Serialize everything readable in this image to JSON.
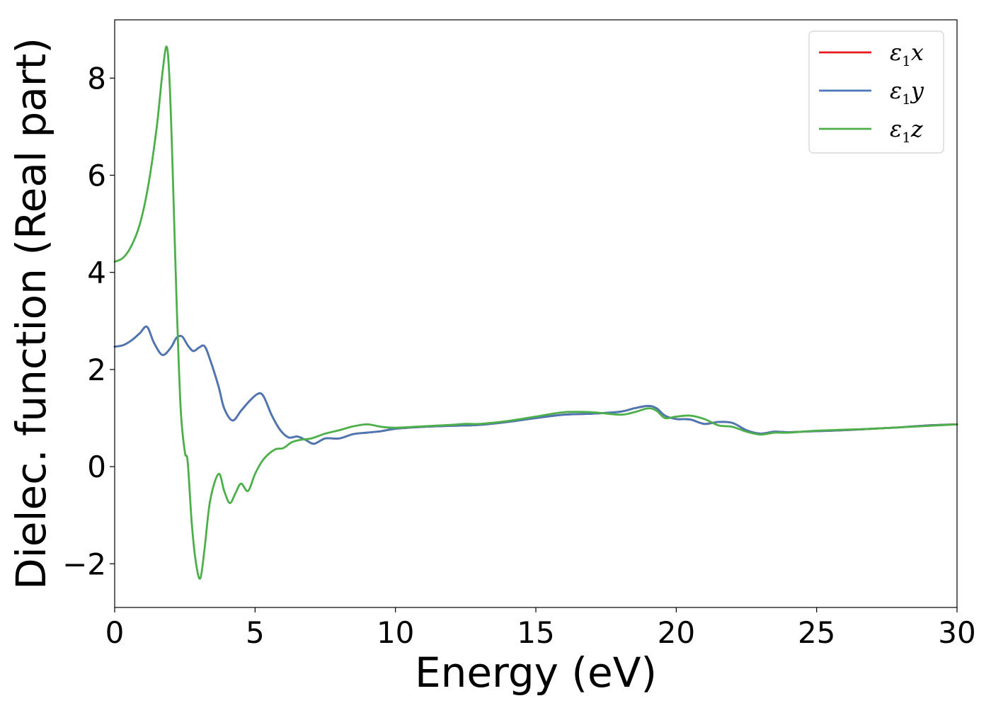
{
  "chart_data": {
    "type": "line",
    "xlabel": "Energy (eV)",
    "ylabel": "Dielec. function (Real part)",
    "xlim": [
      0,
      30
    ],
    "ylim": [
      -2.9,
      9.2
    ],
    "xticks": [
      0,
      5,
      10,
      15,
      20,
      25,
      30
    ],
    "xtick_labels": [
      "0",
      "5",
      "10",
      "15",
      "20",
      "25",
      "30"
    ],
    "yticks": [
      -2,
      0,
      2,
      4,
      6,
      8
    ],
    "ytick_labels": [
      "−2",
      "0",
      "2",
      "4",
      "6",
      "8"
    ],
    "grid": false,
    "legend": {
      "position": "top-right"
    },
    "series": [
      {
        "name": "ε1x",
        "legend_main": "ε",
        "legend_sub": "1",
        "legend_var": "x",
        "color": "#e41a1c",
        "x": [
          0,
          0.3,
          0.6,
          0.9,
          1.15,
          1.4,
          1.7,
          2.0,
          2.2,
          2.4,
          2.6,
          2.8,
          3.0,
          3.2,
          3.4,
          3.7,
          3.9,
          4.2,
          4.5,
          4.8,
          5.1,
          5.3,
          5.6,
          5.9,
          6.2,
          6.5,
          6.8,
          7.1,
          7.5,
          8.0,
          8.5,
          9.0,
          9.5,
          10,
          11,
          12,
          13,
          14,
          15,
          16,
          17,
          18,
          18.5,
          19.0,
          19.3,
          19.6,
          20.0,
          20.5,
          21.0,
          21.5,
          22.0,
          22.5,
          23.0,
          23.5,
          24,
          25,
          26,
          27,
          28,
          29,
          30
        ],
        "y": [
          2.47,
          2.5,
          2.6,
          2.75,
          2.88,
          2.55,
          2.3,
          2.45,
          2.65,
          2.68,
          2.5,
          2.38,
          2.45,
          2.48,
          2.2,
          1.65,
          1.2,
          0.95,
          1.15,
          1.35,
          1.5,
          1.45,
          1.05,
          0.75,
          0.6,
          0.62,
          0.55,
          0.47,
          0.58,
          0.58,
          0.67,
          0.7,
          0.73,
          0.78,
          0.82,
          0.84,
          0.86,
          0.92,
          1.0,
          1.07,
          1.09,
          1.13,
          1.2,
          1.25,
          1.2,
          1.05,
          0.98,
          0.97,
          0.88,
          0.92,
          0.9,
          0.75,
          0.68,
          0.72,
          0.71,
          0.73,
          0.75,
          0.78,
          0.81,
          0.85,
          0.87
        ]
      },
      {
        "name": "ε1y",
        "legend_main": "ε",
        "legend_sub": "1",
        "legend_var": "y",
        "color": "#4a78b5",
        "x": [
          0,
          0.3,
          0.6,
          0.9,
          1.15,
          1.4,
          1.7,
          2.0,
          2.2,
          2.4,
          2.6,
          2.8,
          3.0,
          3.2,
          3.4,
          3.7,
          3.9,
          4.2,
          4.5,
          4.8,
          5.1,
          5.3,
          5.6,
          5.9,
          6.2,
          6.5,
          6.8,
          7.1,
          7.5,
          8.0,
          8.5,
          9.0,
          9.5,
          10,
          11,
          12,
          13,
          14,
          15,
          16,
          17,
          18,
          18.5,
          19.0,
          19.3,
          19.6,
          20.0,
          20.5,
          21.0,
          21.5,
          22.0,
          22.5,
          23.0,
          23.5,
          24,
          25,
          26,
          27,
          28,
          29,
          30
        ],
        "y": [
          2.47,
          2.5,
          2.6,
          2.75,
          2.88,
          2.55,
          2.3,
          2.45,
          2.65,
          2.68,
          2.5,
          2.38,
          2.45,
          2.48,
          2.2,
          1.65,
          1.2,
          0.95,
          1.15,
          1.35,
          1.5,
          1.45,
          1.05,
          0.75,
          0.6,
          0.62,
          0.55,
          0.47,
          0.58,
          0.58,
          0.67,
          0.7,
          0.73,
          0.78,
          0.82,
          0.84,
          0.86,
          0.92,
          1.0,
          1.07,
          1.09,
          1.13,
          1.2,
          1.25,
          1.2,
          1.05,
          0.98,
          0.97,
          0.88,
          0.92,
          0.9,
          0.75,
          0.68,
          0.72,
          0.71,
          0.73,
          0.75,
          0.78,
          0.81,
          0.85,
          0.87
        ]
      },
      {
        "name": "ε1z",
        "legend_main": "ε",
        "legend_sub": "1",
        "legend_var": "z",
        "color": "#4daf4a",
        "x": [
          0,
          0.3,
          0.6,
          0.9,
          1.2,
          1.5,
          1.7,
          1.85,
          1.95,
          2.05,
          2.2,
          2.35,
          2.5,
          2.6,
          2.75,
          2.9,
          3.05,
          3.2,
          3.4,
          3.7,
          3.9,
          4.1,
          4.3,
          4.5,
          4.75,
          5.0,
          5.3,
          5.7,
          6.0,
          6.3,
          6.6,
          7.0,
          7.5,
          8.0,
          8.5,
          9.0,
          9.5,
          10,
          11,
          12,
          12.5,
          13,
          14,
          15,
          16,
          17,
          18,
          18.5,
          19.0,
          19.3,
          19.6,
          20.0,
          20.5,
          21.0,
          21.5,
          22.0,
          22.5,
          23.0,
          23.5,
          24,
          25,
          26,
          27,
          28,
          29,
          30
        ],
        "y": [
          4.22,
          4.3,
          4.55,
          5.0,
          5.8,
          7.0,
          8.1,
          8.65,
          8.0,
          6.4,
          3.5,
          1.2,
          0.3,
          0.1,
          -1.2,
          -2.0,
          -2.3,
          -1.7,
          -0.7,
          -0.15,
          -0.5,
          -0.75,
          -0.55,
          -0.35,
          -0.5,
          -0.15,
          0.15,
          0.35,
          0.38,
          0.5,
          0.55,
          0.58,
          0.68,
          0.75,
          0.83,
          0.87,
          0.82,
          0.8,
          0.83,
          0.86,
          0.88,
          0.88,
          0.94,
          1.03,
          1.12,
          1.12,
          1.07,
          1.12,
          1.2,
          1.15,
          1.0,
          1.03,
          1.05,
          0.98,
          0.85,
          0.82,
          0.72,
          0.66,
          0.7,
          0.7,
          0.74,
          0.76,
          0.78,
          0.81,
          0.84,
          0.87
        ]
      }
    ]
  }
}
